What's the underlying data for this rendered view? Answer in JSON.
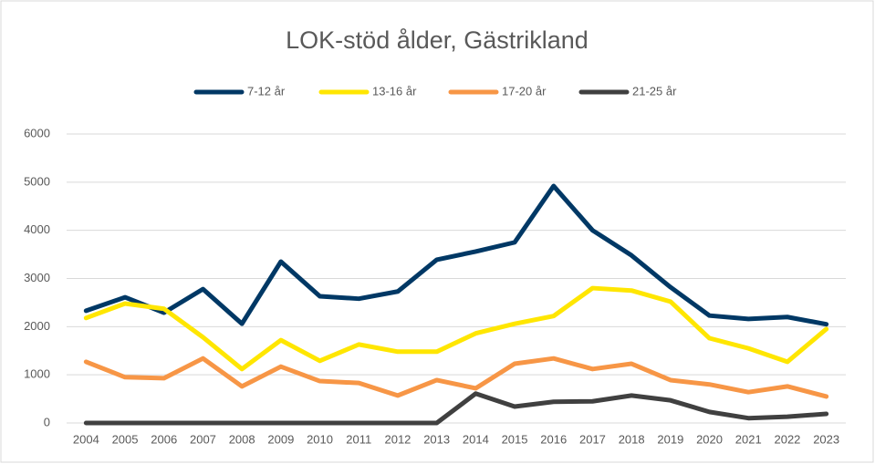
{
  "chart_data": {
    "type": "line",
    "title": "LOK-stöd ålder, Gästrikland",
    "categories": [
      "2004",
      "2005",
      "2006",
      "2007",
      "2008",
      "2009",
      "2010",
      "2011",
      "2012",
      "2013",
      "2014",
      "2015",
      "2016",
      "2017",
      "2018",
      "2019",
      "2020",
      "2021",
      "2022",
      "2023"
    ],
    "series": [
      {
        "name": "7-12 år",
        "color": "#003865",
        "values": [
          2330,
          2610,
          2290,
          2780,
          2060,
          3350,
          2630,
          2580,
          2730,
          3390,
          3560,
          3750,
          4920,
          4000,
          3480,
          2820,
          2230,
          2160,
          2200,
          2050
        ]
      },
      {
        "name": "13-16 år",
        "color": "#ffe600",
        "values": [
          2180,
          2480,
          2370,
          1780,
          1120,
          1720,
          1290,
          1630,
          1480,
          1480,
          1860,
          2060,
          2220,
          2800,
          2750,
          2520,
          1760,
          1550,
          1270,
          1950
        ]
      },
      {
        "name": "17-20 år",
        "color": "#f79646",
        "values": [
          1270,
          950,
          930,
          1340,
          760,
          1170,
          870,
          830,
          570,
          890,
          720,
          1230,
          1340,
          1120,
          1230,
          890,
          800,
          640,
          760,
          550
        ]
      },
      {
        "name": "21-25 år",
        "color": "#404040",
        "values": [
          0,
          0,
          0,
          0,
          0,
          0,
          0,
          0,
          0,
          0,
          610,
          340,
          440,
          450,
          570,
          470,
          230,
          100,
          130,
          190
        ]
      }
    ],
    "ylim": [
      0,
      6000
    ],
    "yticks": [
      0,
      1000,
      2000,
      3000,
      4000,
      5000,
      6000
    ],
    "grid": true,
    "legend": "top"
  }
}
